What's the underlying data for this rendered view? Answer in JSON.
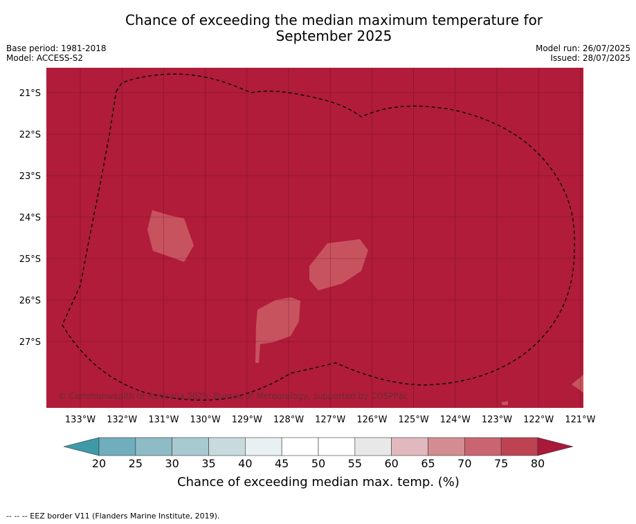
{
  "title": {
    "line1": "Chance of exceeding the median maximum temperature for",
    "line2": "September 2025"
  },
  "meta": {
    "base_period": "Base period: 1981-2018",
    "model": "Model: ACCESS-S2",
    "model_run": "Model run: 26/07/2025",
    "issued": "Issued: 28/07/2025"
  },
  "map": {
    "background_color": "#b01c3a",
    "patch_color": "#c7535f",
    "lon_labels": [
      "133°W",
      "132°W",
      "131°W",
      "130°W",
      "129°W",
      "128°W",
      "127°W",
      "126°W",
      "125°W",
      "124°W",
      "123°W",
      "122°W",
      "121°W"
    ],
    "lat_labels": [
      "21°S",
      "22°S",
      "23°S",
      "24°S",
      "25°S",
      "26°S",
      "27°S"
    ],
    "copyright": "© Commonwealth of Australia 2025, Bureau of Meteorology, supported by COSPPac"
  },
  "colorbar": {
    "ticks": [
      "20",
      "25",
      "30",
      "35",
      "40",
      "45",
      "50",
      "55",
      "60",
      "65",
      "70",
      "75",
      "80"
    ],
    "under_color": "#3e9aa8",
    "over_color": "#a8193a",
    "segment_colors": [
      "#70aebd",
      "#8dbbc6",
      "#a9c9d0",
      "#c8dade",
      "#e8f0f2",
      "#ffffff",
      "#ffffff",
      "#e8e8e8",
      "#e1b8be",
      "#d48c93",
      "#c96470",
      "#bd4352"
    ],
    "label": "Chance of exceeding median max. temp. (%)"
  },
  "footer": "--  --  -- EEZ border V11 (Flanders Marine Institute, 2019)."
}
